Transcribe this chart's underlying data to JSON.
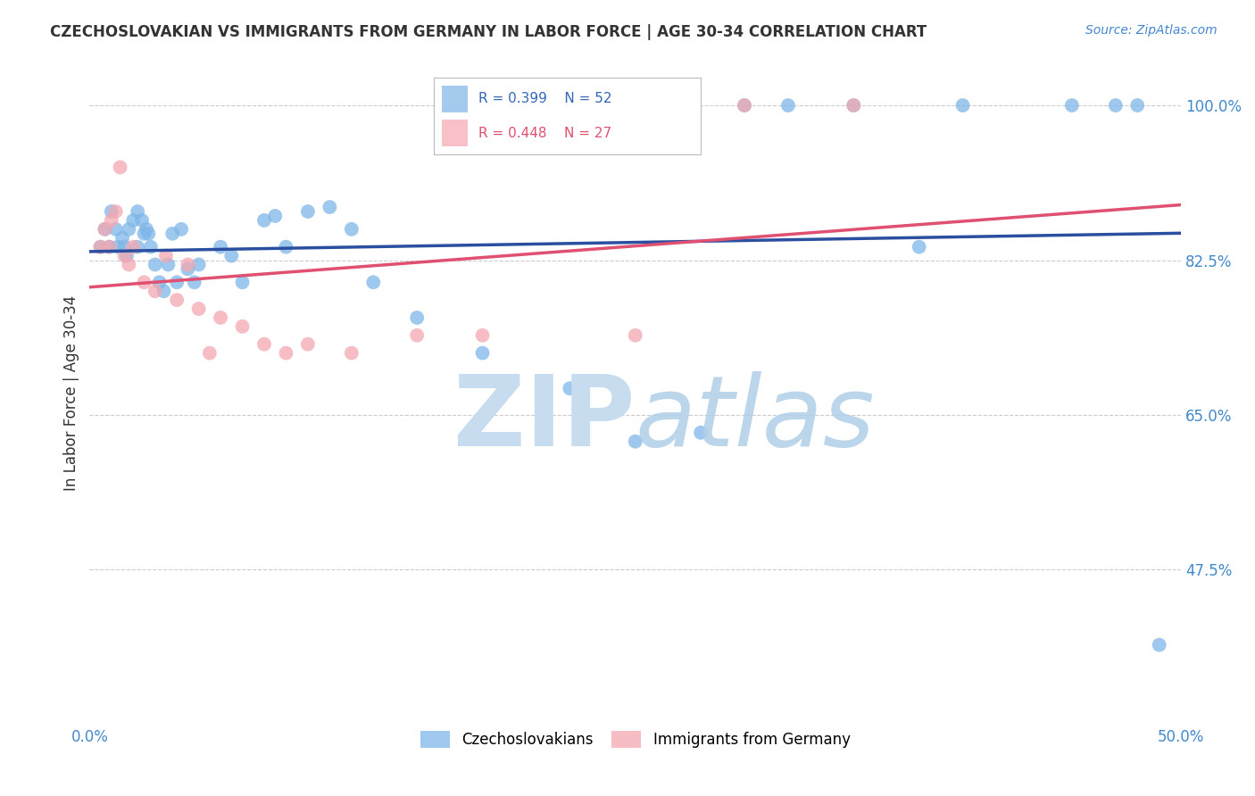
{
  "title": "CZECHOSLOVAKIAN VS IMMIGRANTS FROM GERMANY IN LABOR FORCE | AGE 30-34 CORRELATION CHART",
  "source": "Source: ZipAtlas.com",
  "ylabel": "In Labor Force | Age 30-34",
  "xlim": [
    0.0,
    0.5
  ],
  "ylim": [
    0.3,
    1.05
  ],
  "yticks": [
    0.475,
    0.65,
    0.825,
    1.0
  ],
  "yticklabels": [
    "47.5%",
    "65.0%",
    "82.5%",
    "100.0%"
  ],
  "xticks": [
    0.0,
    0.1,
    0.2,
    0.3,
    0.4,
    0.5
  ],
  "xticklabels": [
    "0.0%",
    "",
    "",
    "",
    "",
    "50.0%"
  ],
  "blue_color": "#7EB6E8",
  "pink_color": "#F4A7B0",
  "blue_line_color": "#2B4FA0",
  "pink_line_color": "#E05070",
  "grid_color": "#CCCCCC",
  "background_color": "#FFFFFF",
  "legend_label_blue": "Czechoslovakians",
  "legend_label_pink": "Immigrants from Germany",
  "blue_x": [
    0.005,
    0.007,
    0.009,
    0.01,
    0.012,
    0.013,
    0.015,
    0.016,
    0.017,
    0.018,
    0.02,
    0.022,
    0.022,
    0.024,
    0.025,
    0.026,
    0.027,
    0.028,
    0.03,
    0.032,
    0.034,
    0.036,
    0.038,
    0.04,
    0.042,
    0.045,
    0.048,
    0.05,
    0.06,
    0.065,
    0.07,
    0.08,
    0.085,
    0.09,
    0.1,
    0.11,
    0.12,
    0.13,
    0.15,
    0.18,
    0.22,
    0.25,
    0.28,
    0.3,
    0.32,
    0.35,
    0.38,
    0.4,
    0.45,
    0.47,
    0.48,
    0.49
  ],
  "blue_y": [
    0.84,
    0.86,
    0.84,
    0.88,
    0.86,
    0.84,
    0.85,
    0.84,
    0.83,
    0.86,
    0.87,
    0.88,
    0.84,
    0.87,
    0.855,
    0.86,
    0.855,
    0.84,
    0.82,
    0.8,
    0.79,
    0.82,
    0.855,
    0.8,
    0.86,
    0.815,
    0.8,
    0.82,
    0.84,
    0.83,
    0.8,
    0.87,
    0.875,
    0.84,
    0.88,
    0.885,
    0.86,
    0.8,
    0.76,
    0.72,
    0.68,
    0.62,
    0.63,
    1.0,
    1.0,
    1.0,
    0.84,
    1.0,
    1.0,
    1.0,
    1.0,
    0.39
  ],
  "pink_x": [
    0.005,
    0.007,
    0.009,
    0.01,
    0.012,
    0.014,
    0.016,
    0.018,
    0.02,
    0.025,
    0.03,
    0.035,
    0.04,
    0.045,
    0.05,
    0.055,
    0.06,
    0.07,
    0.08,
    0.09,
    0.1,
    0.12,
    0.15,
    0.18,
    0.25,
    0.3,
    0.35
  ],
  "pink_y": [
    0.84,
    0.86,
    0.84,
    0.87,
    0.88,
    0.93,
    0.83,
    0.82,
    0.84,
    0.8,
    0.79,
    0.83,
    0.78,
    0.82,
    0.77,
    0.72,
    0.76,
    0.75,
    0.73,
    0.72,
    0.73,
    0.72,
    0.74,
    0.74,
    0.74,
    1.0,
    1.0
  ],
  "legend_r_blue": "R = 0.399",
  "legend_n_blue": "N = 52",
  "legend_r_pink": "R = 0.448",
  "legend_n_pink": "N = 27"
}
